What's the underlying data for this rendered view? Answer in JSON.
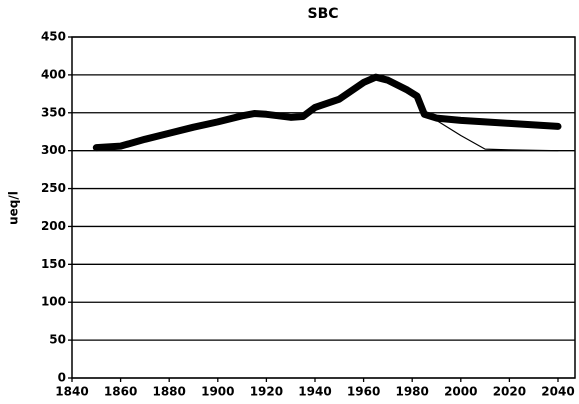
{
  "chart_data": {
    "type": "line",
    "title": "SBC",
    "y_label": "ueq/l",
    "x": [
      1850,
      1860,
      1870,
      1880,
      1890,
      1900,
      1910,
      1915,
      1920,
      1930,
      1935,
      1940,
      1950,
      1960,
      1965,
      1970,
      1978,
      1982,
      1985,
      1990,
      2000,
      2010,
      2020,
      2040
    ],
    "series": [
      {
        "color": "#000000",
        "width": 7,
        "values": [
          304,
          306,
          315,
          323,
          331,
          338,
          346,
          349,
          348,
          344,
          345,
          357,
          368,
          390,
          397,
          393,
          380,
          372,
          348,
          343,
          340,
          338,
          336,
          332
        ]
      },
      {
        "color": "#000000",
        "width": 1.2,
        "values": [
          null,
          null,
          null,
          null,
          null,
          null,
          null,
          null,
          null,
          null,
          null,
          null,
          null,
          null,
          null,
          null,
          null,
          null,
          348,
          340,
          320,
          302,
          301,
          300
        ]
      }
    ],
    "xlim": [
      1840,
      2047
    ],
    "xticks": [
      1840,
      1860,
      1880,
      1900,
      1920,
      1940,
      1960,
      1980,
      2000,
      2020,
      2040
    ],
    "ylim": [
      0,
      450
    ],
    "yticks": [
      0,
      50,
      100,
      150,
      200,
      250,
      300,
      350,
      400,
      450
    ],
    "grid": true
  }
}
